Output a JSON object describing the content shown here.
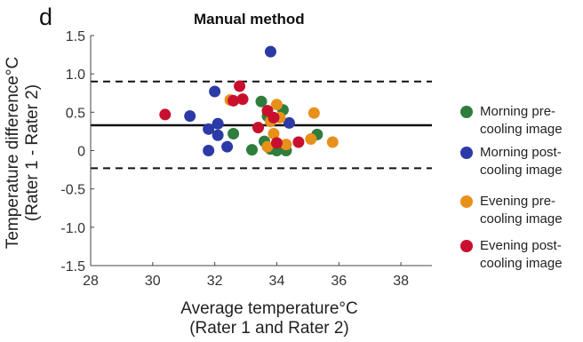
{
  "panel_label": "d",
  "chart_data": {
    "type": "scatter",
    "title": "Manual method",
    "xlabel_lines": [
      "Average temperature°C",
      "(Rater 1 and Rater 2)"
    ],
    "ylabel_lines": [
      "Temperature difference°C",
      "(Rater 1 - Rater 2)"
    ],
    "xlim": [
      28,
      39
    ],
    "ylim": [
      -1.5,
      1.5
    ],
    "xticks": [
      28,
      30,
      32,
      34,
      36,
      38
    ],
    "yticks": [
      -1.5,
      -1.0,
      -0.5,
      0,
      0.5,
      1.0,
      1.5
    ],
    "xtick_labels": [
      "28",
      "30",
      "32",
      "34",
      "36",
      "38"
    ],
    "ytick_labels": [
      "-1.5",
      "-1.0",
      "-0.5",
      "0",
      "0.5",
      "1.0",
      "1.5"
    ],
    "grid": false,
    "legend_position": "right",
    "reference_lines": [
      {
        "name": "mean difference",
        "y": 0.33,
        "style": "solid"
      },
      {
        "name": "upper limit of agreement",
        "y": 0.9,
        "style": "dashed"
      },
      {
        "name": "lower limit of agreement",
        "y": -0.23,
        "style": "dashed"
      }
    ],
    "series": [
      {
        "name": "Morning pre-cooling image",
        "label_lines": [
          "Morning pre-",
          "cooling image"
        ],
        "color": "#2e7d3c",
        "points": [
          [
            32.6,
            0.22
          ],
          [
            33.2,
            0.01
          ],
          [
            33.5,
            0.64
          ],
          [
            33.6,
            0.12
          ],
          [
            33.8,
            0.02
          ],
          [
            34.0,
            0.0
          ],
          [
            34.2,
            0.53
          ],
          [
            34.3,
            0.0
          ],
          [
            35.3,
            0.21
          ],
          [
            33.7,
            0.45
          ]
        ]
      },
      {
        "name": "Morning post-cooling image",
        "label_lines": [
          "Morning post-",
          "cooling image"
        ],
        "color": "#2b3aa6",
        "points": [
          [
            31.2,
            0.45
          ],
          [
            31.8,
            0.0
          ],
          [
            31.8,
            0.28
          ],
          [
            32.0,
            0.77
          ],
          [
            32.1,
            0.35
          ],
          [
            32.1,
            0.2
          ],
          [
            32.4,
            0.05
          ],
          [
            33.8,
            1.29
          ],
          [
            34.4,
            0.36
          ]
        ]
      },
      {
        "name": "Evening pre-cooling image",
        "label_lines": [
          "Evening pre-",
          "cooling image"
        ],
        "color": "#e8901a",
        "points": [
          [
            32.5,
            0.66
          ],
          [
            33.7,
            0.05
          ],
          [
            33.8,
            0.38
          ],
          [
            33.9,
            0.22
          ],
          [
            34.0,
            0.6
          ],
          [
            34.3,
            0.08
          ],
          [
            35.1,
            0.15
          ],
          [
            35.2,
            0.49
          ],
          [
            35.8,
            0.11
          ],
          [
            34.1,
            0.43
          ]
        ]
      },
      {
        "name": "Evening post-cooling image",
        "label_lines": [
          "Evening post-",
          "cooling image"
        ],
        "color": "#c8102e",
        "points": [
          [
            30.4,
            0.47
          ],
          [
            32.6,
            0.65
          ],
          [
            32.8,
            0.84
          ],
          [
            32.9,
            0.67
          ],
          [
            33.4,
            0.3
          ],
          [
            33.7,
            0.52
          ],
          [
            33.9,
            0.43
          ],
          [
            34.0,
            0.1
          ],
          [
            34.7,
            0.11
          ]
        ]
      }
    ]
  }
}
